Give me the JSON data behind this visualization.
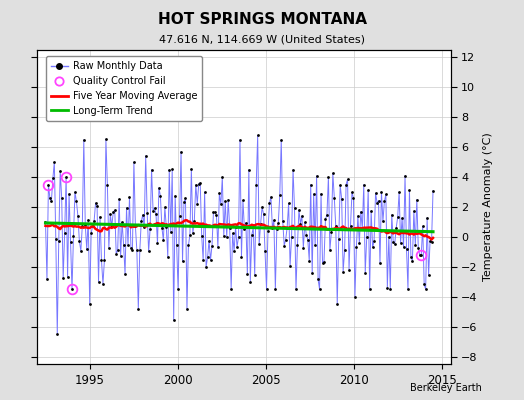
{
  "title": "HOT SPRINGS MONTANA",
  "subtitle": "47.616 N, 114.669 W (United States)",
  "credit": "Berkeley Earth",
  "ylabel": "Temperature Anomaly (°C)",
  "xlim": [
    1992.0,
    2015.5
  ],
  "ylim": [
    -8.5,
    12.5
  ],
  "yticks": [
    -8,
    -6,
    -4,
    -2,
    0,
    2,
    4,
    6,
    8,
    10,
    12
  ],
  "xticks": [
    1995,
    2000,
    2005,
    2010,
    2015
  ],
  "bg_color": "#e0e0e0",
  "plot_bg_color": "#ffffff",
  "raw_line_color": "#7777ff",
  "raw_dot_color": "#000000",
  "moving_avg_color": "#ff0000",
  "trend_color": "#00bb00",
  "qc_color": "#ff44ff",
  "seed": 17,
  "n_points": 264,
  "year_start": 1992.5,
  "year_end": 2014.5,
  "trend_intercept": 0.55,
  "trend_slope": 0.008
}
